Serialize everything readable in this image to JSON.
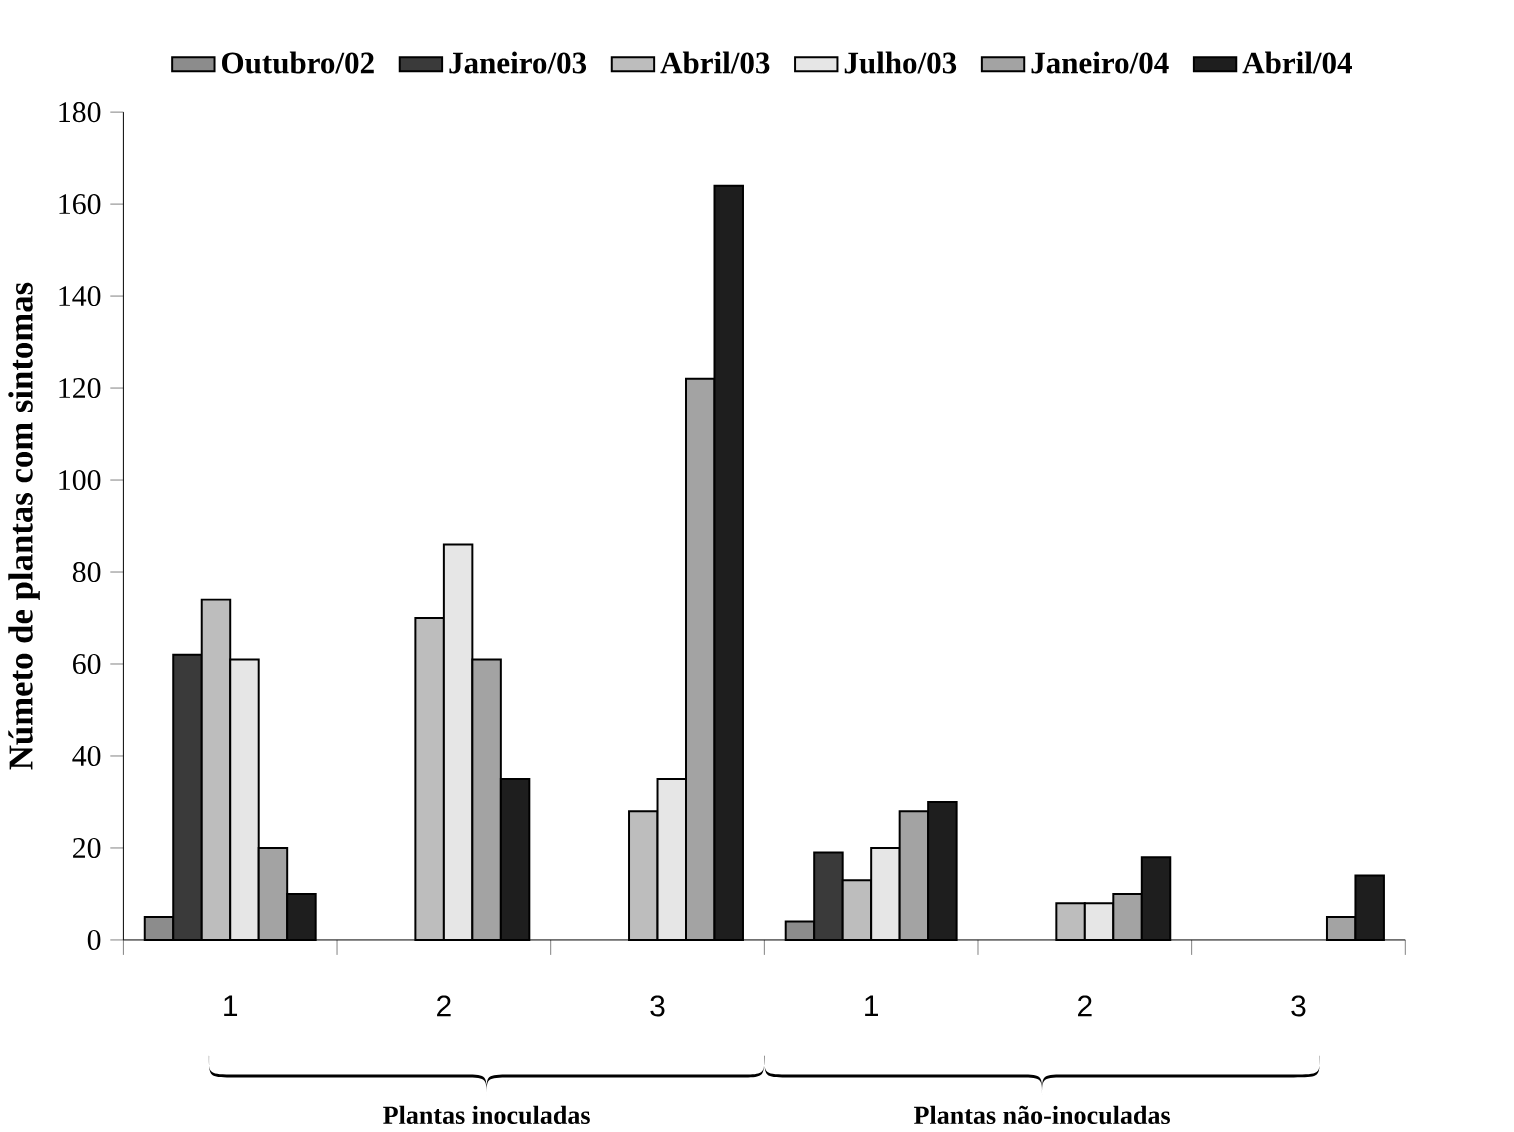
{
  "chart_data": {
    "type": "bar",
    "ylabel": "Númeto de plantas com sintomas",
    "categories": [
      "1",
      "2",
      "3",
      "1",
      "2",
      "3"
    ],
    "series": [
      {
        "name": "Outubro/02",
        "color": "#8c8c8c",
        "values": [
          5,
          null,
          null,
          4,
          null,
          null
        ]
      },
      {
        "name": "Janeiro/03",
        "color": "#3a3a3a",
        "values": [
          62,
          null,
          null,
          19,
          null,
          null
        ]
      },
      {
        "name": "Abril/03",
        "color": "#bdbdbd",
        "values": [
          74,
          70,
          28,
          13,
          8,
          null
        ]
      },
      {
        "name": "Julho/03",
        "color": "#e6e6e6",
        "values": [
          61,
          86,
          35,
          20,
          8,
          null
        ]
      },
      {
        "name": "Janeiro/04",
        "color": "#a3a3a3",
        "values": [
          20,
          61,
          122,
          28,
          10,
          5
        ]
      },
      {
        "name": "Abril/04",
        "color": "#1e1e1e",
        "values": [
          10,
          35,
          164,
          30,
          18,
          14
        ]
      }
    ],
    "ylim": [
      0,
      180
    ],
    "yticks": [
      0,
      20,
      40,
      60,
      80,
      100,
      120,
      140,
      160,
      180
    ],
    "legend": "top",
    "annotations": [
      "Plantas inoculadas",
      "Plantas não-inoculadas"
    ]
  }
}
